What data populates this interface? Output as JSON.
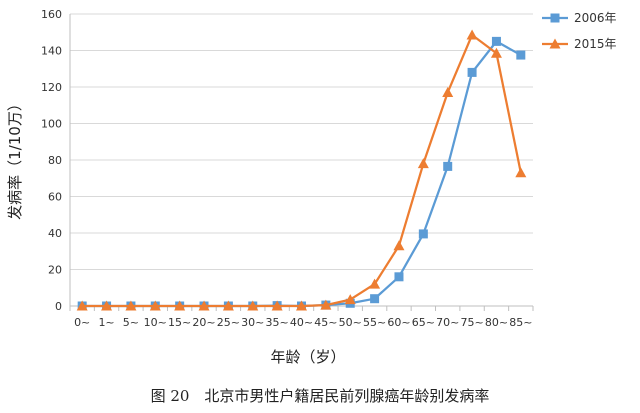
{
  "chart_data": {
    "type": "line",
    "title": "",
    "xlabel": "年龄（岁）",
    "ylabel": "发病率（1/10万）",
    "ylim": [
      0,
      160
    ],
    "yticks": [
      0,
      20,
      40,
      60,
      80,
      100,
      120,
      140,
      160
    ],
    "categories": [
      "0~",
      "1~",
      "5~",
      "10~",
      "15~",
      "20~",
      "25~",
      "30~",
      "35~",
      "40~",
      "45~",
      "50~",
      "55~",
      "60~",
      "65~",
      "70~",
      "75~",
      "80~",
      "85~"
    ],
    "grid": true,
    "legend": "top-right",
    "series": [
      {
        "name": "2006年",
        "color": "#5B9BD5",
        "marker": "square",
        "values": [
          0,
          0,
          0,
          0,
          0,
          0,
          0,
          0,
          0.2,
          0,
          0.5,
          1.5,
          4,
          16,
          39.5,
          76.5,
          128,
          145,
          137.5
        ]
      },
      {
        "name": "2015年",
        "color": "#ED7D31",
        "marker": "triangle",
        "values": [
          0,
          0,
          0,
          0,
          0,
          0,
          0,
          0,
          0,
          0,
          0.5,
          3.5,
          12,
          33,
          78,
          117,
          148.5,
          138.5,
          73
        ]
      }
    ]
  },
  "caption": "图 20　北京市男性户籍居民前列腺癌年龄别发病率"
}
